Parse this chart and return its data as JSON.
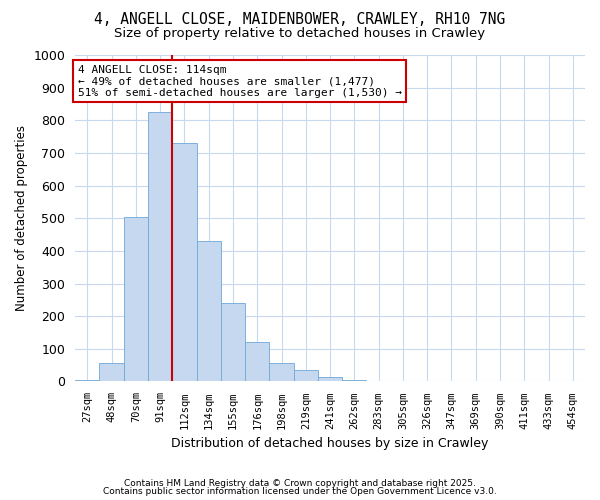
{
  "title_line1": "4, ANGELL CLOSE, MAIDENBOWER, CRAWLEY, RH10 7NG",
  "title_line2": "Size of property relative to detached houses in Crawley",
  "xlabel": "Distribution of detached houses by size in Crawley",
  "ylabel": "Number of detached properties",
  "categories": [
    "27sqm",
    "48sqm",
    "70sqm",
    "91sqm",
    "112sqm",
    "134sqm",
    "155sqm",
    "176sqm",
    "198sqm",
    "219sqm",
    "241sqm",
    "262sqm",
    "283sqm",
    "305sqm",
    "326sqm",
    "347sqm",
    "369sqm",
    "390sqm",
    "411sqm",
    "433sqm",
    "454sqm"
  ],
  "values": [
    5,
    55,
    505,
    825,
    730,
    430,
    240,
    120,
    55,
    35,
    15,
    5,
    0,
    0,
    0,
    0,
    0,
    0,
    0,
    0,
    0
  ],
  "bar_color": "#c5d8f0",
  "bar_edgecolor": "#6fa8d8",
  "annotation_text": "4 ANGELL CLOSE: 114sqm\n← 49% of detached houses are smaller (1,477)\n51% of semi-detached houses are larger (1,530) →",
  "annotation_box_color": "#ffffff",
  "annotation_box_edgecolor": "#cc0000",
  "vline_color": "#cc0000",
  "ylim": [
    0,
    1000
  ],
  "yticks": [
    0,
    100,
    200,
    300,
    400,
    500,
    600,
    700,
    800,
    900,
    1000
  ],
  "footer_line1": "Contains HM Land Registry data © Crown copyright and database right 2025.",
  "footer_line2": "Contains public sector information licensed under the Open Government Licence v3.0.",
  "bg_color": "#ffffff",
  "grid_color": "#c8d8ee"
}
